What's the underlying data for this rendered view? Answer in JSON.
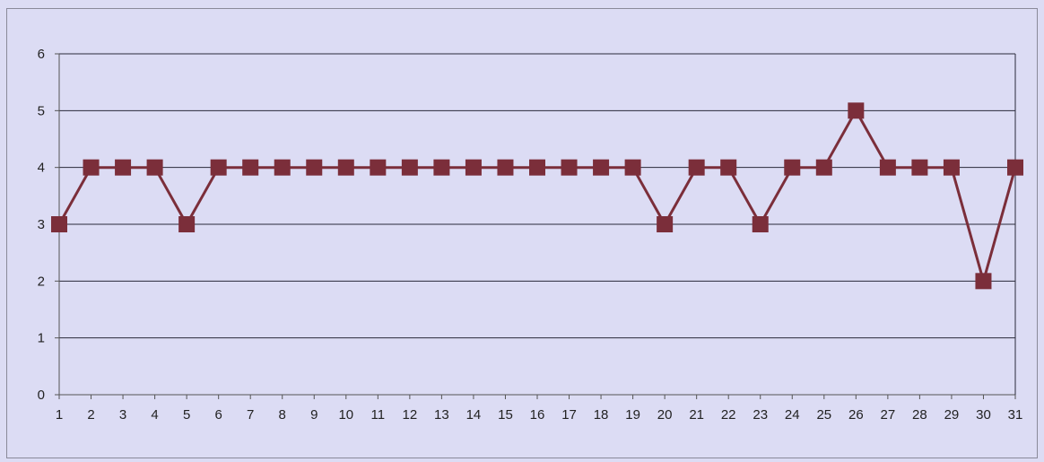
{
  "chart_data": {
    "type": "line",
    "title": "",
    "xlabel": "",
    "ylabel": "",
    "x": [
      1,
      2,
      3,
      4,
      5,
      6,
      7,
      8,
      9,
      10,
      11,
      12,
      13,
      14,
      15,
      16,
      17,
      18,
      19,
      20,
      21,
      22,
      23,
      24,
      25,
      26,
      27,
      28,
      29,
      30,
      31
    ],
    "series": [
      {
        "values": [
          3,
          4,
          4,
          4,
          3,
          4,
          4,
          4,
          4,
          4,
          4,
          4,
          4,
          4,
          4,
          4,
          4,
          4,
          4,
          3,
          4,
          4,
          3,
          4,
          4,
          5,
          4,
          4,
          4,
          2,
          4
        ]
      }
    ],
    "ylim": [
      0,
      6
    ],
    "yticks": [
      0,
      1,
      2,
      3,
      4,
      5,
      6
    ],
    "grid": "horizontal",
    "legend": "none",
    "line_color": "#7b2e3a",
    "marker_color": "#7b2e3a",
    "marker": "square",
    "background_color": "#dcdcf4",
    "gridline_color": "#2a2a3a"
  }
}
